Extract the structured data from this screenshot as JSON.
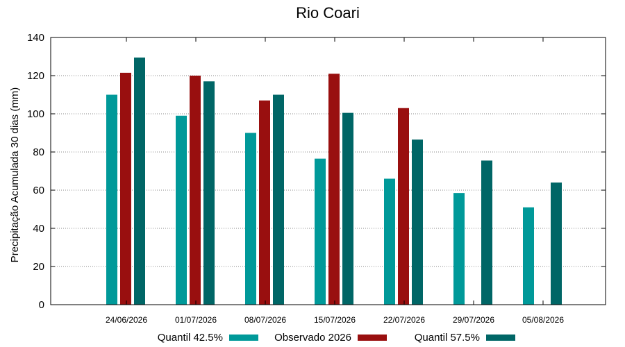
{
  "chart_data": {
    "type": "bar",
    "title": "Rio Coari",
    "xlabel": "",
    "ylabel": "Precipitação Acumulada 30 dias (mm)",
    "ylim": [
      0,
      140
    ],
    "yticks": [
      0,
      20,
      40,
      60,
      80,
      100,
      120,
      140
    ],
    "categories": [
      "24/06/2026",
      "01/07/2026",
      "08/07/2026",
      "15/07/2026",
      "22/07/2026",
      "29/07/2026",
      "05/08/2026"
    ],
    "series": [
      {
        "name": "Quantil 42.5%",
        "color": "#009999",
        "values": [
          110,
          99,
          90,
          76.5,
          66,
          58.5,
          51
        ]
      },
      {
        "name": "Observado 2026",
        "color": "#990F0F",
        "values": [
          121.5,
          120,
          107,
          121,
          103,
          null,
          null
        ]
      },
      {
        "name": "Quantil 57.5%",
        "color": "#006666",
        "values": [
          129.5,
          117,
          110,
          100.5,
          86.5,
          75.5,
          64
        ]
      }
    ],
    "grid": true,
    "legend_position": "bottom"
  }
}
